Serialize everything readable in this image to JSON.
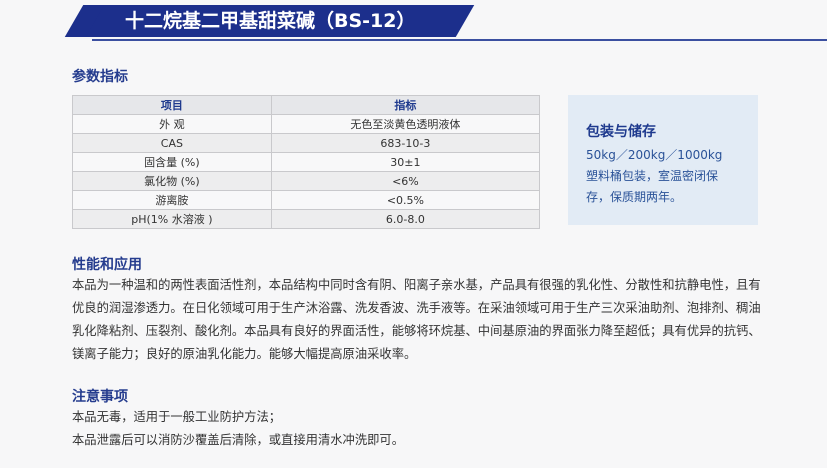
{
  "header": {
    "title": "十二烷基二甲基甜菜碱（BS-12）"
  },
  "params": {
    "heading": "参数指标",
    "columns": [
      "项目",
      "指标"
    ],
    "rows": [
      [
        "外 观",
        "无色至淡黄色透明液体"
      ],
      [
        "CAS",
        "683-10-3"
      ],
      [
        "固含量 (%)",
        "30±1"
      ],
      [
        "氯化物 (%)",
        "<6%"
      ],
      [
        "游离胺",
        "<0.5%"
      ],
      [
        "pH(1% 水溶液 )",
        "6.0-8.0"
      ]
    ]
  },
  "packaging": {
    "heading": "包装与储存",
    "lines": [
      "50kg／200kg／1000kg",
      "塑料桶包装，室温密闭保",
      "存，保质期两年。"
    ]
  },
  "performance": {
    "heading": "性能和应用",
    "text": "本品为一种温和的两性表面活性剂，本品结构中同时含有阴、阳离子亲水基，产品具有很强的乳化性、分散性和抗静电性，且有优良的润湿渗透力。在日化领域可用于生产沐浴露、洗发香波、洗手液等。在采油领域可用于生产三次采油助剂、泡排剂、稠油乳化降粘剂、压裂剂、酸化剂。本品具有良好的界面活性，能够将环烷基、中间基原油的界面张力降至超低；具有优异的抗钙、镁离子能力；良好的原油乳化能力。能够大幅提高原油采收率。"
  },
  "notes": {
    "heading": "注意事项",
    "lines": [
      "本品无毒，适用于一般工业防护方法；",
      "本品泄露后可以消防沙覆盖后清除，或直接用清水冲洗即可。"
    ]
  }
}
